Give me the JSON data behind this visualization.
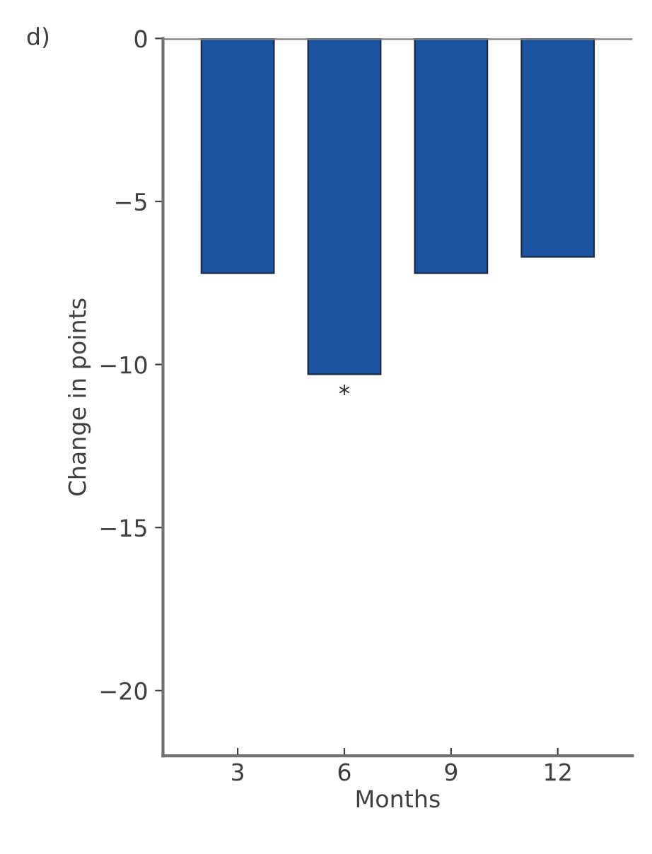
{
  "chart_data": {
    "type": "bar",
    "xlabel": "Months",
    "ylabel": "Change in points",
    "categories": [
      "3",
      "6",
      "9",
      "12"
    ],
    "values": [
      -7.2,
      -10.3,
      -7.2,
      -6.7
    ],
    "color": "#1a53a0",
    "ylim": [
      -22,
      0
    ],
    "yticks": [
      0,
      -5,
      -10,
      -15,
      -20
    ],
    "ref_lines": [
      {
        "axis": "y",
        "value": 0,
        "color": "#808080"
      }
    ],
    "annotations": [
      "d)",
      {
        "text": "*",
        "x": "6",
        "y": -10.3
      }
    ],
    "grid": false
  }
}
